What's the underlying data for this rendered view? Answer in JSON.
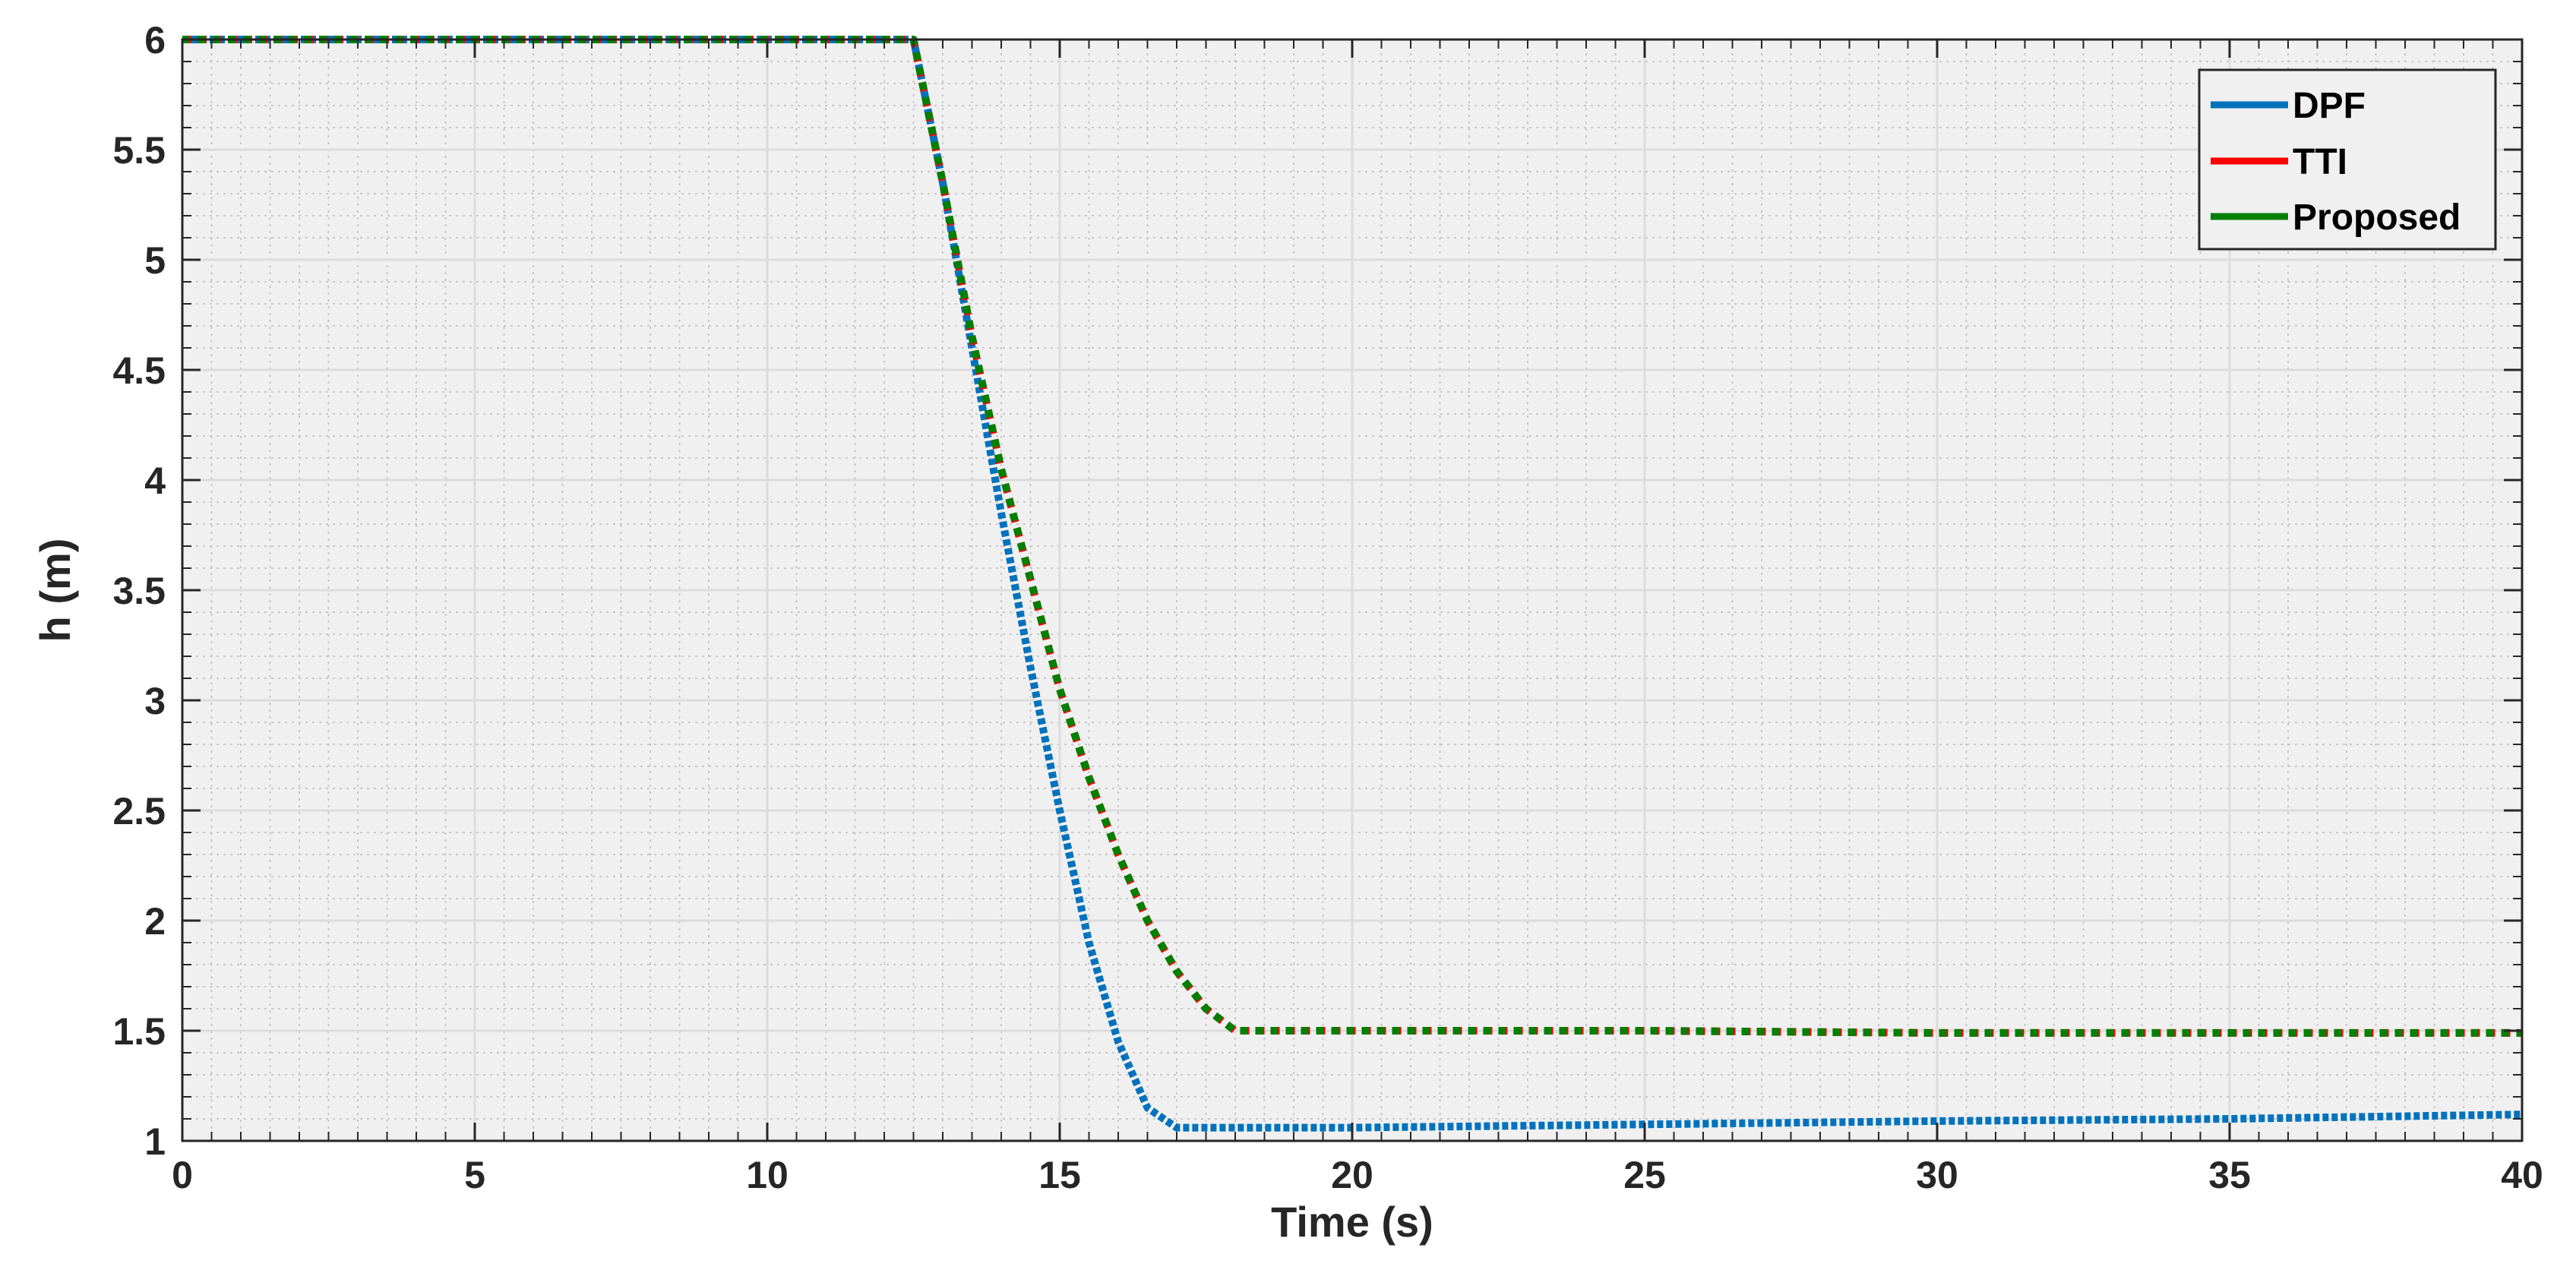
{
  "chart_data": {
    "type": "line",
    "title": "",
    "xlabel": "Time (s)",
    "ylabel": "h (m)",
    "xlim": [
      0,
      40
    ],
    "ylim": [
      1,
      6
    ],
    "xticks": [
      0,
      5,
      10,
      15,
      20,
      25,
      30,
      35,
      40
    ],
    "xtick_labels": [
      "0",
      "5",
      "10",
      "15",
      "20",
      "25",
      "30",
      "35",
      "40"
    ],
    "yticks": [
      1,
      1.5,
      2,
      2.5,
      3,
      3.5,
      4,
      4.5,
      5,
      5.5,
      6
    ],
    "ytick_labels": [
      "1",
      "1.5",
      "2",
      "2.5",
      "3",
      "3.5",
      "4",
      "4.5",
      "5",
      "5.5",
      "6"
    ],
    "grid": true,
    "minor_grid": true,
    "legend_position": "top-right",
    "colors": {
      "plot_background": "#f0f0f0",
      "major_grid": "#dcdcdc",
      "minor_grid": "#c8c8c8",
      "axis": "#262626"
    },
    "series": [
      {
        "name": "DPF",
        "color": "#0072BD",
        "x": [
          0,
          12.5,
          13,
          13.5,
          14,
          14.5,
          15,
          15.5,
          16,
          16.5,
          17,
          17.2,
          20,
          25,
          30,
          35,
          40
        ],
        "y": [
          6,
          6,
          5.35,
          4.6,
          3.85,
          3.15,
          2.5,
          1.9,
          1.45,
          1.15,
          1.06,
          1.06,
          1.06,
          1.075,
          1.09,
          1.1,
          1.12
        ]
      },
      {
        "name": "TTI",
        "color": "#FF0000",
        "x": [
          0,
          12.5,
          13,
          13.5,
          14,
          14.5,
          15,
          15.5,
          16,
          16.5,
          17,
          17.5,
          18,
          20,
          25,
          30,
          35,
          40
        ],
        "y": [
          6,
          6,
          5.35,
          4.65,
          4.05,
          3.55,
          3.05,
          2.65,
          2.3,
          2.0,
          1.77,
          1.6,
          1.5,
          1.5,
          1.5,
          1.49,
          1.49,
          1.49
        ]
      },
      {
        "name": "Proposed",
        "color": "#007F00",
        "x": [
          0,
          12.5,
          13,
          13.5,
          14,
          14.5,
          15,
          15.5,
          16,
          16.5,
          17,
          17.5,
          18,
          20,
          25,
          30,
          35,
          40
        ],
        "y": [
          6,
          6,
          5.35,
          4.65,
          4.05,
          3.55,
          3.05,
          2.65,
          2.3,
          2.0,
          1.77,
          1.6,
          1.5,
          1.5,
          1.5,
          1.49,
          1.49,
          1.49
        ]
      }
    ]
  }
}
